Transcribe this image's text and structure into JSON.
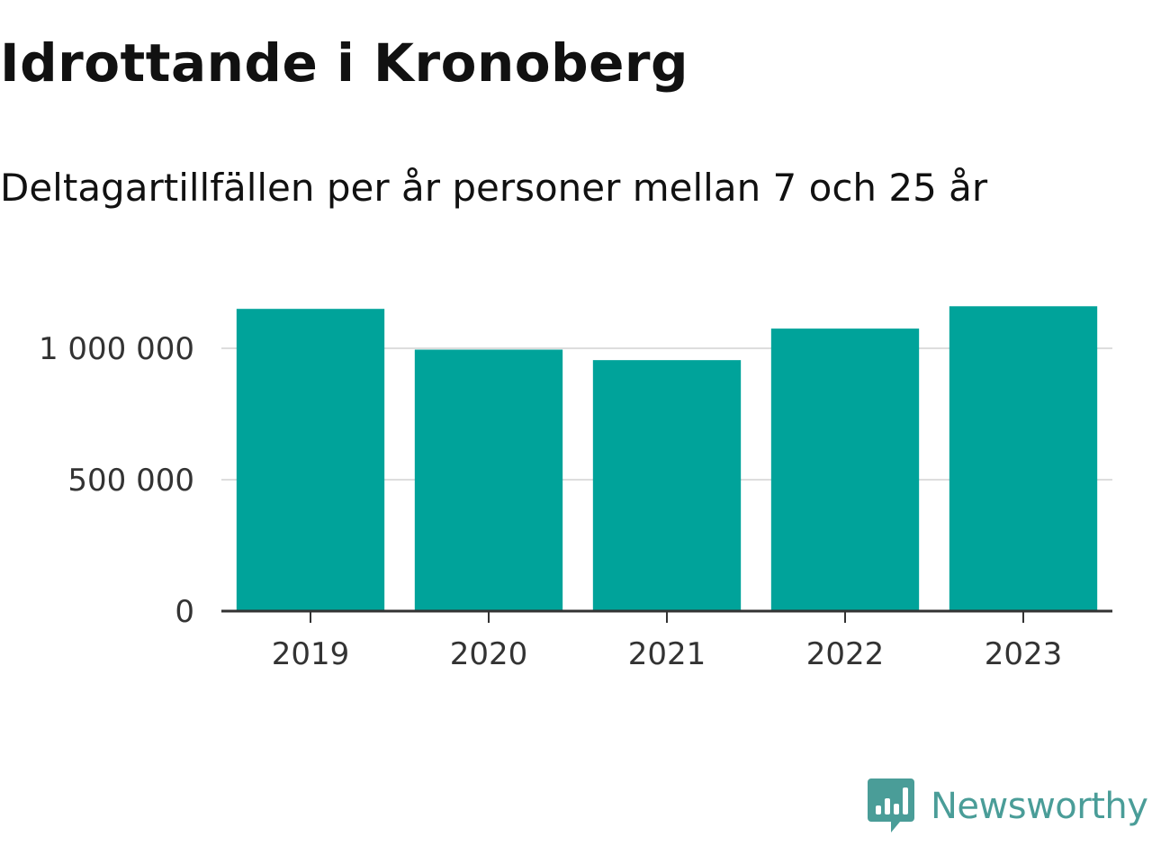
{
  "header": {
    "title": "Idrottande i Kronoberg",
    "subtitle": "Deltagartillfällen per år personer mellan 7 och 25 år"
  },
  "brand": {
    "name": "Newsworthy",
    "icon": "newsworthy-logo-icon",
    "color": "#4a9d98"
  },
  "colors": {
    "bar": "#00a39a",
    "grid": "#dddddd",
    "axis": "#333333"
  },
  "chart_data": {
    "type": "bar",
    "title": "Idrottande i Kronoberg",
    "subtitle": "Deltagartillfällen per år personer mellan 7 och 25 år",
    "xlabel": "",
    "ylabel": "",
    "categories": [
      "2019",
      "2020",
      "2021",
      "2022",
      "2023"
    ],
    "values": [
      1150000,
      995000,
      955000,
      1075000,
      1160000
    ],
    "ylim": [
      0,
      1000000
    ],
    "yticks": [
      0,
      500000,
      1000000
    ],
    "ytick_labels": [
      "0",
      "500 000",
      "1 000 000"
    ],
    "grid": true,
    "legend": "none"
  }
}
